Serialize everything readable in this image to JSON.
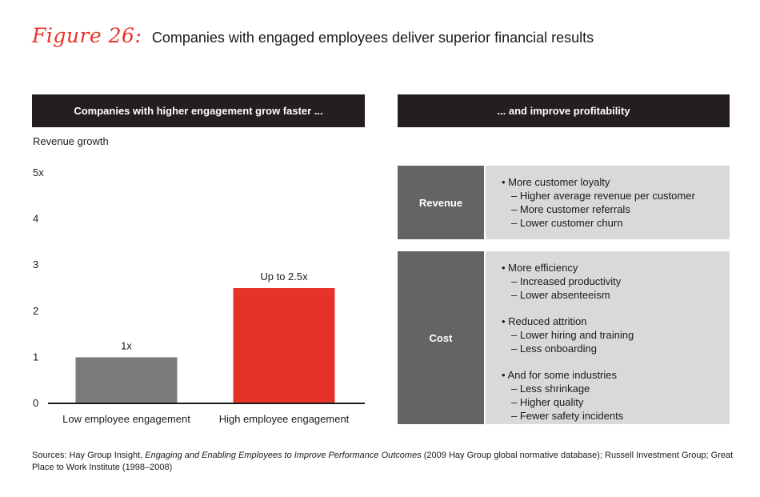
{
  "figure": {
    "label": "Figure 26:",
    "title": "Companies with engaged employees deliver superior financial results"
  },
  "left_header": "Companies with higher engagement grow faster ...",
  "right_header": "... and improve profitability",
  "colors": {
    "accent": "#e63329",
    "bar_low": "#7a7b7d",
    "header": "#231f20",
    "block_label": "#636466",
    "block_body": "#d9d9da"
  },
  "chart_data": {
    "type": "bar",
    "ylabel": "Revenue growth",
    "categories": [
      "Low employee engagement",
      "High employee engagement"
    ],
    "values": [
      1,
      2.5
    ],
    "data_labels": [
      "1x",
      "Up to 2.5x"
    ],
    "ylim": [
      0,
      5
    ],
    "yticks": [
      "0",
      "1",
      "2",
      "3",
      "4",
      "5x"
    ],
    "grid": false
  },
  "revenue": {
    "label": "Revenue",
    "groups": [
      {
        "bullet": "• More customer loyalty",
        "subs": [
          "– Higher average revenue per customer",
          "– More customer referrals",
          "– Lower customer churn"
        ]
      }
    ]
  },
  "cost": {
    "label": "Cost",
    "groups": [
      {
        "bullet": "• More efficiency",
        "subs": [
          "– Increased productivity",
          "– Lower absenteeism"
        ]
      },
      {
        "bullet": "• Reduced attrition",
        "subs": [
          "– Lower hiring and training",
          "– Less onboarding"
        ]
      },
      {
        "bullet": "• And for some industries",
        "subs": [
          "– Less shrinkage",
          "– Higher quality",
          "– Fewer safety incidents"
        ]
      }
    ]
  },
  "sources": {
    "prefix": "Sources: Hay Group Insight, ",
    "italic": "Engaging and Enabling Employees to Improve Performance Outcomes",
    "suffix": " (2009 Hay Group global normative database); Russell Investment Group; Great Place to Work Institute (1998–2008)"
  }
}
